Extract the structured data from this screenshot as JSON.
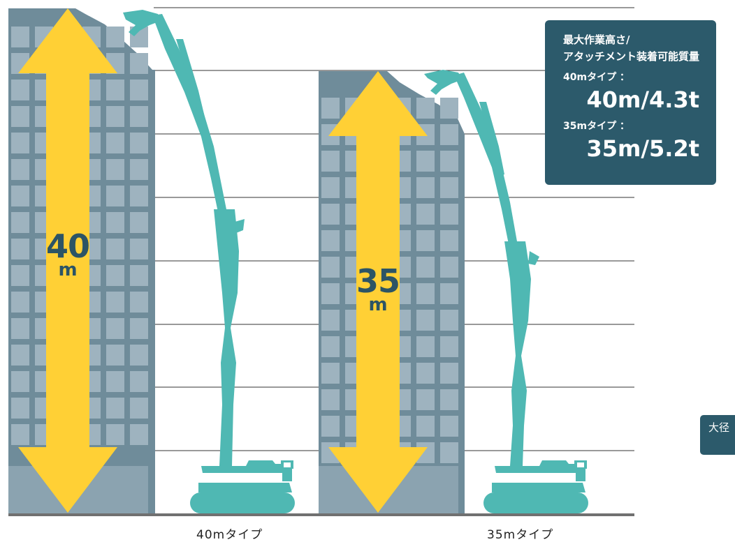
{
  "spec_panel": {
    "title_line1": "最大作業高さ/",
    "title_line2": "アタッチメント装着可能質量",
    "type40_label": "40mタイプ ：",
    "type40_value": "40m/4.3t",
    "type35_label": "35mタイプ ：",
    "type35_value": "35m/5.2t"
  },
  "arrow40": {
    "number": "40",
    "unit": "m"
  },
  "arrow35": {
    "number": "35",
    "unit": "m"
  },
  "captions": {
    "left": "40mタイプ",
    "right": "35mタイプ"
  },
  "side_tab": {
    "text": "大径"
  },
  "colors": {
    "building": "#6f8c9a",
    "window": "#9eb3bf",
    "machine": "#4fb8b3",
    "arrow": "#ffd035",
    "panel": "#2c5a6b",
    "ground": "#707070"
  }
}
